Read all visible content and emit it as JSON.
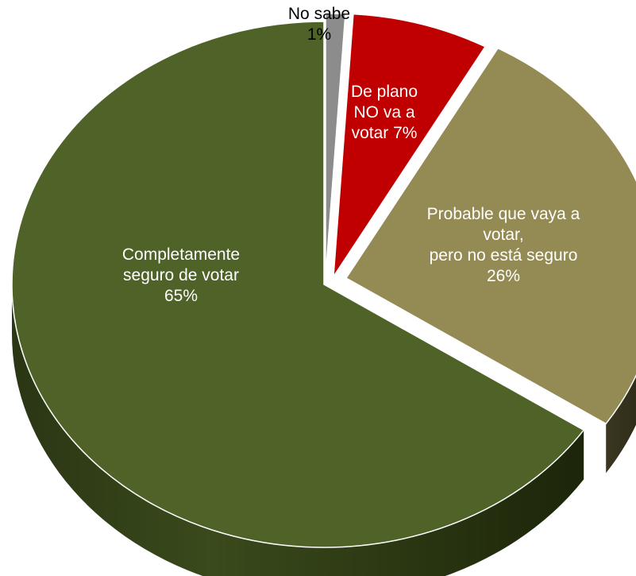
{
  "chart_data": {
    "type": "pie",
    "title": "",
    "legend": "none",
    "slices": [
      {
        "label": [
          "No sabe"
        ],
        "percent_text": "1%",
        "value": 1,
        "color": "#8c8c8c",
        "label_color": "#000000"
      },
      {
        "label": [
          "De plano",
          "NO va a",
          "votar"
        ],
        "percent_text": "7%",
        "value": 7,
        "color": "#c00000",
        "label_color": "#ffffff"
      },
      {
        "label": [
          "Probable que vaya a",
          "votar,",
          "pero no está seguro"
        ],
        "percent_text": "26%",
        "value": 26,
        "color": "#948a54",
        "label_color": "#ffffff"
      },
      {
        "label": [
          "Completamente",
          "seguro de votar"
        ],
        "percent_text": "65%",
        "value": 65,
        "color": "#4f6228",
        "label_color": "#ffffff"
      }
    ]
  }
}
